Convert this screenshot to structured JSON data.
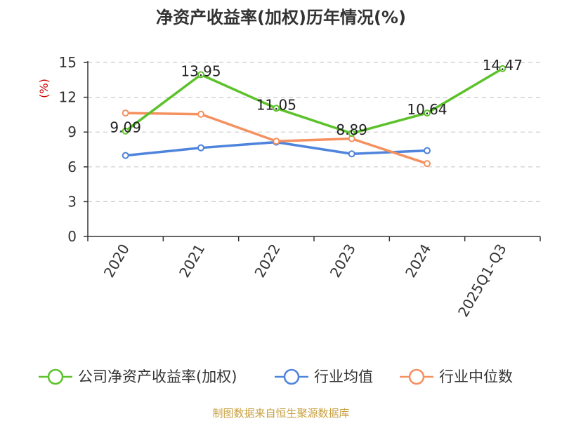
{
  "chart_data": {
    "type": "line",
    "title": "净资产收益率(加权)历年情况(%)",
    "ylabel": "(%)",
    "categories": [
      "2020",
      "2021",
      "2022",
      "2023",
      "2024",
      "2025Q1-Q3"
    ],
    "ylim": [
      0,
      15
    ],
    "yticks": [
      0,
      3,
      6,
      9,
      12,
      15
    ],
    "grid": true,
    "legend_position": "bottom",
    "series": [
      {
        "name": "公司净资产收益率(加权)",
        "color": "#5cc22a",
        "values": [
          9.09,
          13.95,
          11.05,
          8.89,
          10.64,
          14.47
        ],
        "labels": [
          "9.09",
          "13.95",
          "11.05",
          "8.89",
          "10.64",
          "14.47"
        ]
      },
      {
        "name": "行业均值",
        "color": "#4f84dc",
        "values": [
          6.98,
          7.64,
          8.13,
          7.12,
          7.4,
          null
        ]
      },
      {
        "name": "行业中位数",
        "color": "#f5905f",
        "values": [
          10.64,
          10.54,
          8.21,
          8.43,
          6.28,
          null
        ]
      }
    ]
  },
  "colors": {
    "ylabel": "#cc0000",
    "grid": "#cccccc",
    "axis": "#333333",
    "source": "#c8a040"
  },
  "source": "制图数据来自恒生聚源数据库"
}
